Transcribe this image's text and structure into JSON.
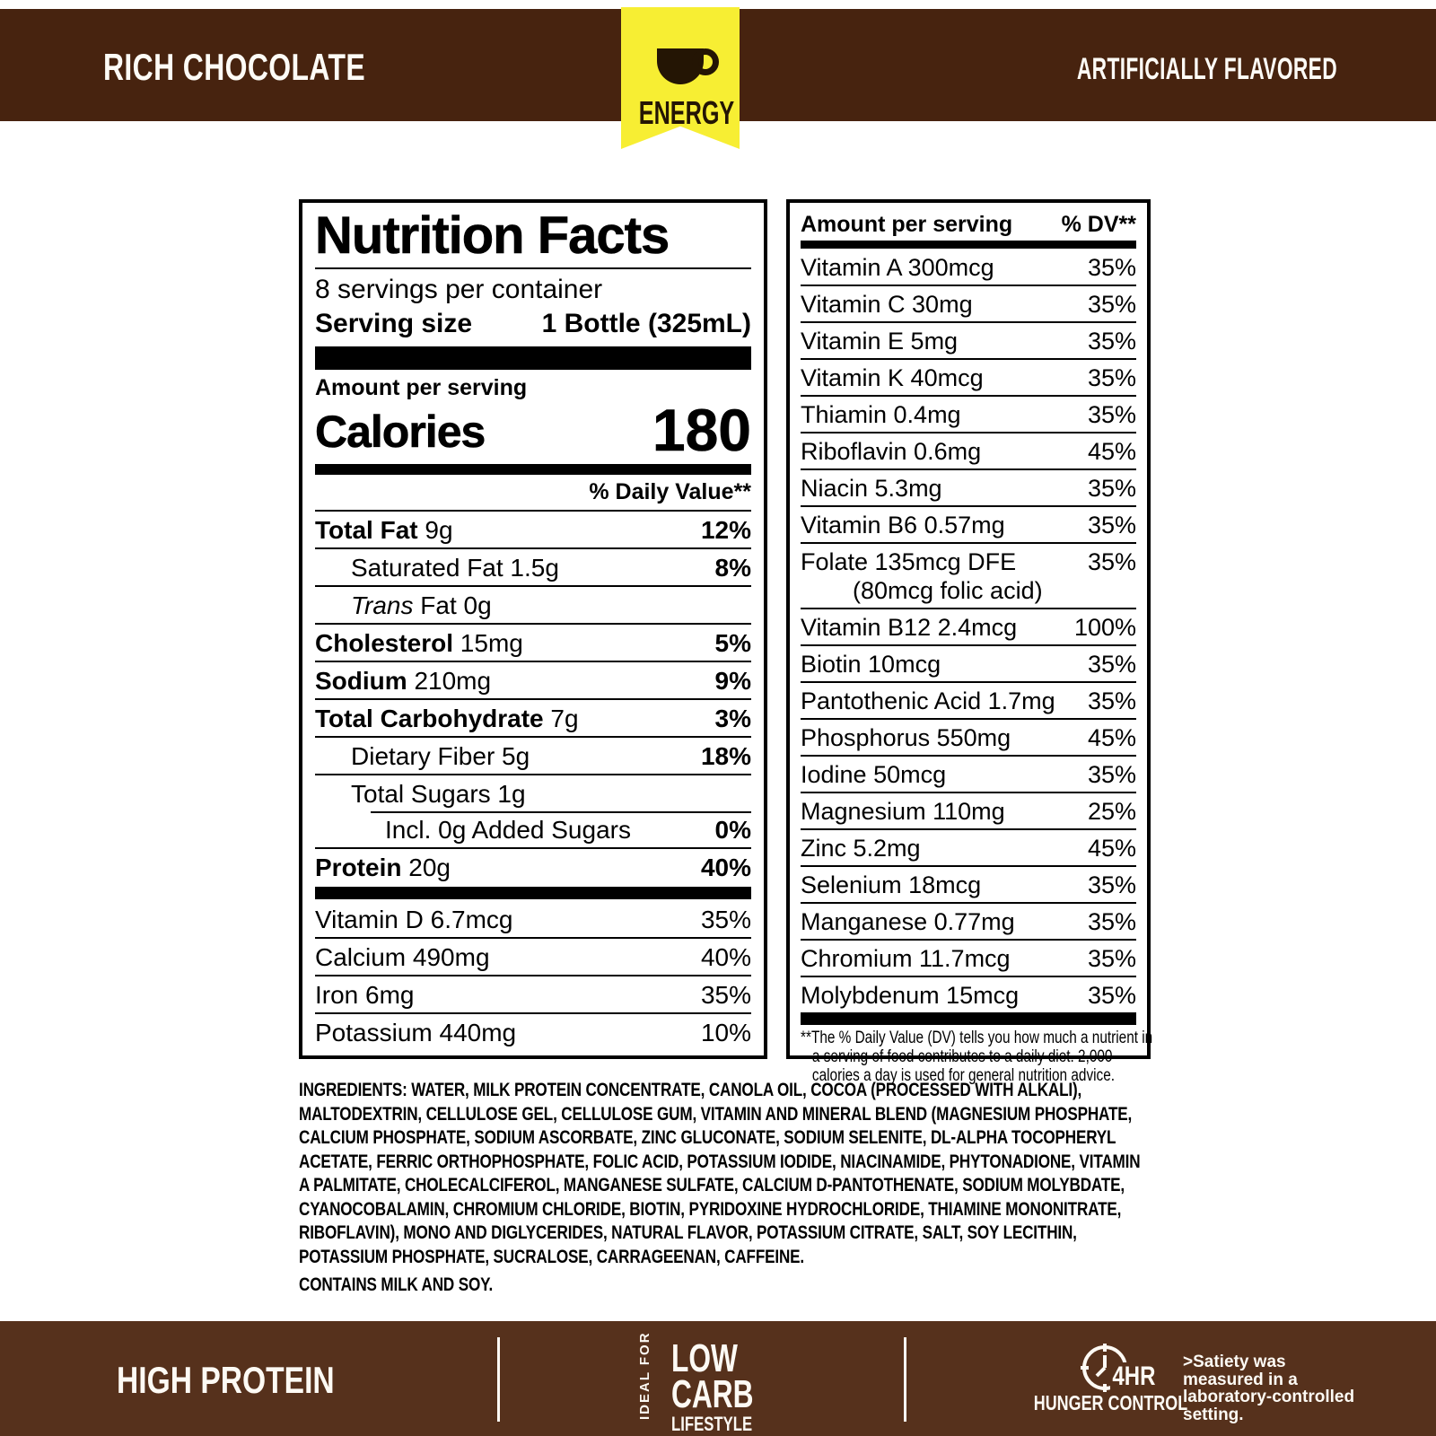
{
  "header": {
    "flavor": "RICH CHOCOLATE",
    "artificially_flavored": "ARTIFICIALLY FLAVORED",
    "ribbon_label": "ENERGY"
  },
  "colors": {
    "brown_top": "#47230f",
    "brown_bottom": "#56311c",
    "ribbon_yellow": "#f7ee33",
    "text_black": "#000000",
    "text_white": "#fdfaf4"
  },
  "icons": {
    "ribbon_icon": "coffee-cup-icon",
    "footer_icon": "clock-icon"
  },
  "nutrition": {
    "title": "Nutrition Facts",
    "servings_per_container": "8 servings per container",
    "serving_size_label": "Serving size",
    "serving_size_value": "1 Bottle (325mL)",
    "amount_per_serving": "Amount per serving",
    "calories_label": "Calories",
    "calories_value": "180",
    "daily_value_header": "% Daily Value**",
    "rows": [
      {
        "bold": "Total Fat",
        "rest": " 9g",
        "dv": "12%",
        "dvBold": true,
        "indent": 0
      },
      {
        "rest": "Saturated Fat 1.5g",
        "dv": "8%",
        "dvBold": true,
        "indent": 1
      },
      {
        "italic": "Trans",
        "rest": " Fat 0g",
        "dv": "",
        "indent": 1
      },
      {
        "bold": "Cholesterol",
        "rest": " 15mg",
        "dv": "5%",
        "dvBold": true,
        "indent": 0
      },
      {
        "bold": "Sodium",
        "rest": " 210mg",
        "dv": "9%",
        "dvBold": true,
        "indent": 0
      },
      {
        "bold": "Total Carbohydrate",
        "rest": " 7g",
        "dv": "3%",
        "dvBold": true,
        "indent": 0
      },
      {
        "rest": "Dietary Fiber 5g",
        "dv": "18%",
        "dvBold": true,
        "indent": 1
      },
      {
        "rest": "Total Sugars 1g",
        "dv": "",
        "indent": 1
      },
      {
        "rest": "Incl. 0g Added Sugars",
        "dv": "0%",
        "dvBold": true,
        "indent": 2,
        "insetSep": true
      },
      {
        "bold": "Protein",
        "rest": " 20g",
        "dv": "40%",
        "dvBold": true,
        "indent": 0
      }
    ],
    "vitamins": [
      {
        "rest": "Vitamin D 6.7mcg",
        "dv": "35%"
      },
      {
        "rest": "Calcium 490mg",
        "dv": "40%"
      },
      {
        "rest": "Iron 6mg",
        "dv": "35%"
      },
      {
        "rest": "Potassium 440mg",
        "dv": "10%"
      }
    ]
  },
  "micronutrients": {
    "header_left": "Amount per serving",
    "header_right": "% DV**",
    "rows": [
      {
        "name": "Vitamin A 300mcg",
        "dv": "35%"
      },
      {
        "name": "Vitamin C 30mg",
        "dv": "35%"
      },
      {
        "name": "Vitamin E 5mg",
        "dv": "35%"
      },
      {
        "name": "Vitamin K 40mcg",
        "dv": "35%"
      },
      {
        "name": "Thiamin 0.4mg",
        "dv": "35%"
      },
      {
        "name": "Riboflavin 0.6mg",
        "dv": "45%"
      },
      {
        "name": "Niacin 5.3mg",
        "dv": "35%"
      },
      {
        "name": "Vitamin B6 0.57mg",
        "dv": "35%"
      },
      {
        "name": "Folate 135mcg DFE",
        "name2": "(80mcg folic acid)",
        "dv": "35%"
      },
      {
        "name": "Vitamin B12 2.4mcg",
        "dv": "100%"
      },
      {
        "name": "Biotin 10mcg",
        "dv": "35%"
      },
      {
        "name": "Pantothenic Acid 1.7mg",
        "dv": "35%"
      },
      {
        "name": "Phosphorus 550mg",
        "dv": "45%"
      },
      {
        "name": "Iodine 50mcg",
        "dv": "35%"
      },
      {
        "name": "Magnesium 110mg",
        "dv": "25%"
      },
      {
        "name": "Zinc 5.2mg",
        "dv": "45%"
      },
      {
        "name": "Selenium 18mcg",
        "dv": "35%"
      },
      {
        "name": "Manganese 0.77mg",
        "dv": "35%"
      },
      {
        "name": "Chromium 11.7mcg",
        "dv": "35%"
      },
      {
        "name": "Molybdenum 15mcg",
        "dv": "35%"
      }
    ],
    "footnote": "**The % Daily Value (DV) tells you how much a nutrient in a serving of food contributes to a daily diet. 2,000 calories a day is used for general nutrition advice."
  },
  "ingredients": {
    "label": "INGREDIENTS:",
    "text": " WATER, MILK PROTEIN CONCENTRATE, CANOLA OIL, COCOA (PROCESSED WITH ALKALI), MALTODEXTRIN, CELLULOSE GEL, CELLULOSE GUM, VITAMIN AND MINERAL BLEND (MAGNESIUM PHOSPHATE, CALCIUM PHOSPHATE, SODIUM ASCORBATE, ZINC GLUCONATE, SODIUM SELENITE, DL-ALPHA TOCOPHERYL ACETATE, FERRIC ORTHOPHOSPHATE, FOLIC ACID, POTASSIUM IODIDE, NIACINAMIDE, PHYTONADIONE, VITAMIN A PALMITATE, CHOLECALCIFEROL, MANGANESE SULFATE, CALCIUM D-PANTOTHENATE, SODIUM MOLYBDATE, CYANOCOBALAMIN, CHROMIUM CHLORIDE, BIOTIN, PYRIDOXINE HYDROCHLORIDE, THIAMINE MONONITRATE, RIBOFLAVIN), MONO AND DIGLYCERIDES, NATURAL FLAVOR, POTASSIUM CITRATE, SALT, SOY LECITHIN, POTASSIUM PHOSPHATE, SUCRALOSE, CARRAGEENAN, CAFFEINE.",
    "contains": "CONTAINS MILK AND SOY."
  },
  "footer": {
    "high_protein": "HIGH PROTEIN",
    "ideal_for": "IDEAL FOR",
    "low": "LOW",
    "carb": "CARB",
    "lifestyle": "LIFESTYLE",
    "clock_label": "4HR",
    "hunger_control": "HUNGER CONTROL",
    "satiety_note": ">Satiety was measured in a laboratory-controlled setting."
  }
}
